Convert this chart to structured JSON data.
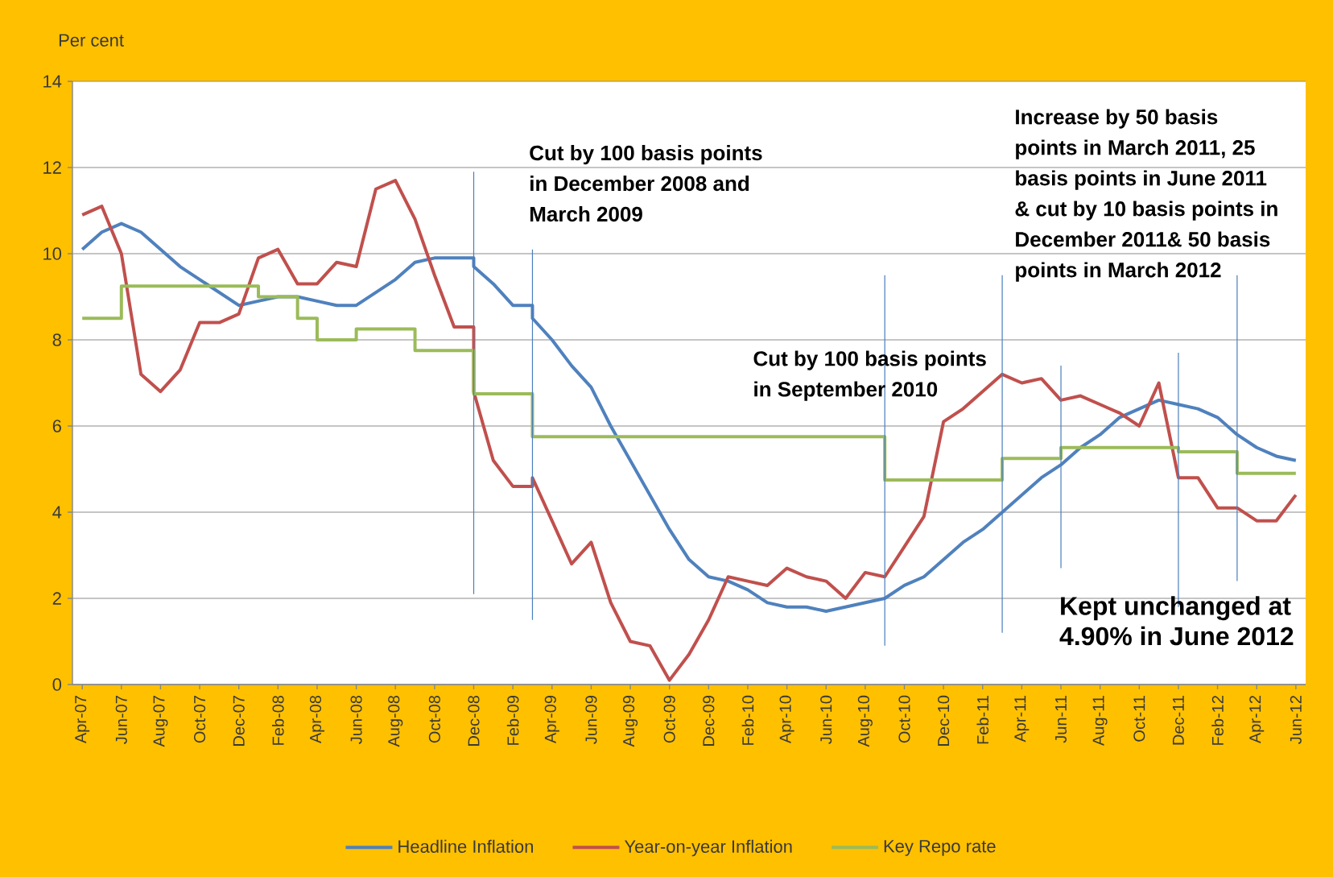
{
  "chart_data": {
    "type": "line",
    "ylabel": "Per cent",
    "x": [
      "2007-04",
      "2007-05",
      "2007-06",
      "2007-07",
      "2007-08",
      "2007-09",
      "2007-10",
      "2007-11",
      "2007-12",
      "2008-01",
      "2008-02",
      "2008-03",
      "2008-04",
      "2008-05",
      "2008-06",
      "2008-07",
      "2008-08",
      "2008-09",
      "2008-10",
      "2008-11",
      "2008-12",
      "2008-12",
      "2009-01",
      "2009-02",
      "2009-03",
      "2009-03",
      "2009-04",
      "2009-05",
      "2009-06",
      "2009-07",
      "2009-08",
      "2009-09",
      "2009-10",
      "2009-11",
      "2009-12",
      "2010-01",
      "2010-02",
      "2010-03",
      "2010-04",
      "2010-05",
      "2010-06",
      "2010-07",
      "2010-08",
      "2010-09",
      "2010-10",
      "2010-11",
      "2010-12",
      "2011-01",
      "2011-02",
      "2011-03",
      "2011-04",
      "2011-05",
      "2011-06",
      "2011-07",
      "2011-08",
      "2011-09",
      "2011-10",
      "2011-11",
      "2011-12",
      "2012-01",
      "2012-02",
      "2012-03",
      "2012-04",
      "2012-05",
      "2012-06"
    ],
    "xlim": [
      "2007-03-16",
      "2012-06-16"
    ],
    "xticks": [
      {
        "value": "2007-04",
        "label": "Apr-07"
      },
      {
        "value": "2007-06",
        "label": "Jun-07"
      },
      {
        "value": "2007-08",
        "label": "Aug-07"
      },
      {
        "value": "2007-10",
        "label": "Oct-07"
      },
      {
        "value": "2007-12",
        "label": "Dec-07"
      },
      {
        "value": "2008-02",
        "label": "Feb-08"
      },
      {
        "value": "2008-04",
        "label": "Apr-08"
      },
      {
        "value": "2008-06",
        "label": "Jun-08"
      },
      {
        "value": "2008-08",
        "label": "Aug-08"
      },
      {
        "value": "2008-10",
        "label": "Oct-08"
      },
      {
        "value": "2008-12",
        "label": "Dec-08"
      },
      {
        "value": "2009-02",
        "label": "Feb-09"
      },
      {
        "value": "2009-04",
        "label": "Apr-09"
      },
      {
        "value": "2009-06",
        "label": "Jun-09"
      },
      {
        "value": "2009-08",
        "label": "Aug-09"
      },
      {
        "value": "2009-10",
        "label": "Oct-09"
      },
      {
        "value": "2009-12",
        "label": "Dec-09"
      },
      {
        "value": "2010-02",
        "label": "Feb-10"
      },
      {
        "value": "2010-04",
        "label": "Apr-10"
      },
      {
        "value": "2010-06",
        "label": "Jun-10"
      },
      {
        "value": "2010-08",
        "label": "Aug-10"
      },
      {
        "value": "2010-10",
        "label": "Oct-10"
      },
      {
        "value": "2010-12",
        "label": "Dec-10"
      },
      {
        "value": "2011-02",
        "label": "Feb-11"
      },
      {
        "value": "2011-04",
        "label": "Apr-11"
      },
      {
        "value": "2011-06",
        "label": "Jun-11"
      },
      {
        "value": "2011-08",
        "label": "Aug-11"
      },
      {
        "value": "2011-10",
        "label": "Oct-11"
      },
      {
        "value": "2011-12",
        "label": "Dec-11"
      },
      {
        "value": "2012-02",
        "label": "Feb-12"
      },
      {
        "value": "2012-04",
        "label": "Apr-12"
      },
      {
        "value": "2012-06",
        "label": "Jun-12"
      }
    ],
    "ylim": [
      0,
      14
    ],
    "yticks": [
      0,
      2,
      4,
      6,
      8,
      10,
      12,
      14
    ],
    "grid": "y",
    "legend": "bottom",
    "series": [
      {
        "name": "Headline Inflation",
        "color": "#4f81bd",
        "values": [
          10.1,
          10.5,
          10.7,
          10.5,
          10.1,
          9.7,
          9.4,
          9.1,
          8.8,
          8.9,
          9.0,
          9.0,
          8.9,
          8.8,
          8.8,
          9.1,
          9.4,
          9.8,
          9.9,
          9.9,
          9.9,
          9.7,
          9.3,
          8.8,
          8.8,
          8.5,
          8.0,
          7.4,
          6.9,
          6.0,
          5.2,
          4.4,
          3.6,
          2.9,
          2.5,
          2.4,
          2.2,
          1.9,
          1.8,
          1.8,
          1.7,
          1.8,
          1.9,
          2.0,
          2.3,
          2.5,
          2.9,
          3.3,
          3.6,
          4.0,
          4.4,
          4.8,
          5.1,
          5.5,
          5.8,
          6.2,
          6.4,
          6.6,
          6.5,
          6.4,
          6.2,
          5.8,
          5.5,
          5.3,
          5.2
        ]
      },
      {
        "name": "Year-on-year Inflation",
        "color": "#c0504d",
        "values": [
          10.9,
          11.1,
          10.0,
          7.2,
          6.8,
          7.3,
          8.4,
          8.4,
          8.6,
          9.9,
          10.1,
          9.3,
          9.3,
          9.8,
          9.7,
          11.5,
          11.7,
          10.8,
          9.5,
          8.3,
          8.3,
          6.8,
          5.2,
          4.6,
          4.6,
          4.8,
          3.8,
          2.8,
          3.3,
          1.9,
          1.0,
          0.9,
          0.1,
          0.7,
          1.5,
          2.5,
          2.4,
          2.3,
          2.7,
          2.5,
          2.4,
          2.0,
          2.6,
          2.5,
          3.2,
          3.9,
          6.1,
          6.4,
          6.8,
          7.2,
          7.0,
          7.1,
          6.6,
          6.7,
          6.5,
          6.3,
          6.0,
          7.0,
          4.8,
          4.8,
          4.1,
          4.1,
          3.8,
          3.8,
          4.4
        ]
      },
      {
        "name": "Key Repo rate",
        "type": "step",
        "color": "#9bbb59",
        "values": [
          8.5,
          8.5,
          9.25,
          9.25,
          9.25,
          9.25,
          9.25,
          9.25,
          9.25,
          9.0,
          9.0,
          8.5,
          8.0,
          8.0,
          8.25,
          8.25,
          8.25,
          7.75,
          7.75,
          7.75,
          6.75,
          6.75,
          6.75,
          6.75,
          5.75,
          5.75,
          5.75,
          5.75,
          5.75,
          5.75,
          5.75,
          5.75,
          5.75,
          5.75,
          5.75,
          5.75,
          5.75,
          5.75,
          5.75,
          5.75,
          5.75,
          5.75,
          5.75,
          4.75,
          4.75,
          4.75,
          4.75,
          4.75,
          4.75,
          5.25,
          5.25,
          5.25,
          5.5,
          5.5,
          5.5,
          5.5,
          5.5,
          5.5,
          5.4,
          5.4,
          5.4,
          4.9,
          4.9,
          4.9,
          4.9
        ]
      },
      {
        "color": "#4a7ebb",
        "x": [
          "2008-12",
          "2008-12"
        ],
        "values": [
          2.1,
          11.9
        ]
      },
      {
        "color": "#4a7ebb",
        "x": [
          "2009-03",
          "2009-03"
        ],
        "values": [
          1.5,
          10.1
        ]
      },
      {
        "color": "#4a7ebb",
        "x": [
          "2010-09",
          "2010-09"
        ],
        "values": [
          0.9,
          9.5
        ]
      },
      {
        "color": "#4a7ebb",
        "x": [
          "2011-03",
          "2011-03"
        ],
        "values": [
          1.2,
          9.5
        ]
      },
      {
        "color": "#4a7ebb",
        "x": [
          "2011-06",
          "2011-06"
        ],
        "values": [
          2.7,
          7.4
        ]
      },
      {
        "color": "#4a7ebb",
        "x": [
          "2011-12",
          "2011-12"
        ],
        "values": [
          1.8,
          7.7
        ]
      },
      {
        "color": "#4a7ebb",
        "x": [
          "2012-03",
          "2012-03"
        ],
        "values": [
          2.4,
          9.5
        ]
      }
    ],
    "annotations": [
      "Cut by 100 basis points in December 2008 and March 2009",
      "Cut by 100 basis points in September 2010",
      "Increase by 50 basis points in March 2011, 25 basis points in June 2011 & cut by 10 basis points in December 2011& 50 basis points in March 2012",
      "Kept unchanged at 4.90% in June 2012"
    ]
  }
}
